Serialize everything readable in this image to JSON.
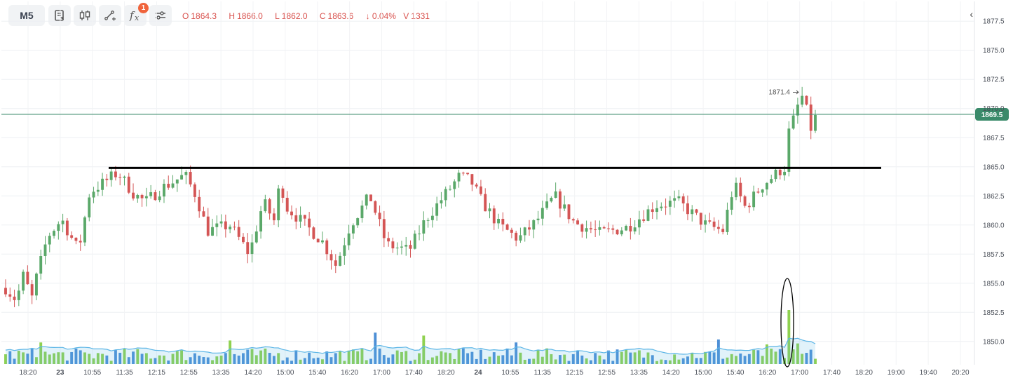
{
  "toolbar": {
    "timeframe": "M5",
    "indicator_badge": "1",
    "icons": [
      "notes-icon",
      "candlestick-icon",
      "drawing-tools-icon",
      "indicators-icon",
      "settings-icon"
    ]
  },
  "ohlc": {
    "open_label": "O",
    "open": "1864.3",
    "high_label": "H",
    "high": "1866.0",
    "low_label": "L",
    "low": "1862.0",
    "close_label": "C",
    "close": "1863.6",
    "change": "↓ 0.04%",
    "volume_label": "V",
    "volume": "1331"
  },
  "colors": {
    "bull": "#5aa869",
    "bear": "#d45555",
    "accent": "#3a8a6a",
    "volume_up": "#8fd14f",
    "volume_down": "#4d8fd6",
    "volume_ma": "#5bb5e6"
  },
  "chart_data": {
    "type": "candlestick",
    "price_axis": {
      "ticks": [
        1877.5,
        1875.0,
        1872.5,
        1870.0,
        1867.5,
        1865.0,
        1862.5,
        1860.0,
        1857.5,
        1855.0,
        1852.5,
        1850.0
      ],
      "tick_labels": [
        "1877.5",
        "1875.0",
        "1872.5",
        "1870.0",
        "1867.5",
        "1865.0",
        "1862.5",
        "1860.0",
        "1857.5",
        "1855.0",
        "1852.5",
        "1850.0"
      ],
      "range": [
        1848.0,
        1879.2
      ]
    },
    "time_axis": {
      "labels": [
        "18:20",
        "23",
        "10:55",
        "11:35",
        "12:15",
        "12:55",
        "13:35",
        "14:20",
        "15:00",
        "15:40",
        "16:20",
        "17:00",
        "17:40",
        "18:20",
        "24",
        "10:55",
        "11:35",
        "12:15",
        "12:55",
        "13:35",
        "14:20",
        "15:00",
        "15:40",
        "16:20",
        "17:00",
        "17:40",
        "18:20",
        "19:00",
        "19:40",
        "20:20"
      ],
      "bold": [
        "23",
        "24"
      ]
    },
    "current_price": 1869.5,
    "current_price_label": "1869.5",
    "high_marker": 1871.4,
    "high_marker_label": "1871.4",
    "support_line": 1864.9,
    "candle_count": 185,
    "price_path": [
      [
        0,
        1854.6
      ],
      [
        4,
        1853.5
      ],
      [
        6,
        1855.8
      ],
      [
        10,
        1853.4
      ],
      [
        11,
        1855.5
      ],
      [
        15,
        1859.0
      ],
      [
        20,
        1860.5
      ],
      [
        26,
        1857.8
      ],
      [
        30,
        1862.8
      ],
      [
        40,
        1864.5
      ],
      [
        46,
        1862.6
      ],
      [
        50,
        1862.0
      ],
      [
        56,
        1863.2
      ],
      [
        64,
        1864.3
      ],
      [
        68,
        1862.5
      ],
      [
        72,
        1859.5
      ],
      [
        80,
        1860.0
      ],
      [
        87,
        1857.5
      ],
      [
        92,
        1862.0
      ],
      [
        96,
        1860.3
      ],
      [
        98,
        1864.0
      ],
      [
        100,
        1861.6
      ],
      [
        107,
        1860.0
      ],
      [
        113,
        1858.6
      ],
      [
        118,
        1856.5
      ],
      [
        123,
        1860.0
      ],
      [
        130,
        1862.5
      ],
      [
        136,
        1858.3
      ],
      [
        144,
        1857.8
      ],
      [
        150,
        1860.5
      ],
      [
        162,
        1864.2
      ],
      [
        166,
        1863.8
      ],
      [
        170,
        1862.0
      ],
      [
        176,
        1860.0
      ],
      [
        183,
        1858.8
      ],
      [
        189,
        1860.2
      ],
      [
        196,
        1862.5
      ],
      [
        203,
        1860.2
      ],
      [
        212,
        1859.3
      ],
      [
        222,
        1859.8
      ],
      [
        232,
        1861.7
      ],
      [
        240,
        1862.0
      ],
      [
        250,
        1860.0
      ],
      [
        256,
        1859.5
      ],
      [
        260,
        1863.5
      ],
      [
        264,
        1861.5
      ],
      [
        270,
        1863.4
      ],
      [
        277,
        1864.8
      ],
      [
        282,
        1864.3
      ],
      [
        287,
        1863.0
      ],
      [
        289,
        1863.2
      ]
    ],
    "volume_spikes": [
      {
        "index": 12,
        "value": 2.2
      },
      {
        "index": 80,
        "value": 2.4
      },
      {
        "index": 132,
        "value": 3.2
      },
      {
        "index": 149,
        "value": 2.9
      },
      {
        "index": 182,
        "value": 2.2
      },
      {
        "index": 280,
        "value": 5.5
      },
      {
        "index": 282,
        "value": 2.1
      },
      {
        "index": 271,
        "value": 2.0
      },
      {
        "index": 254,
        "value": 2.5
      }
    ]
  }
}
